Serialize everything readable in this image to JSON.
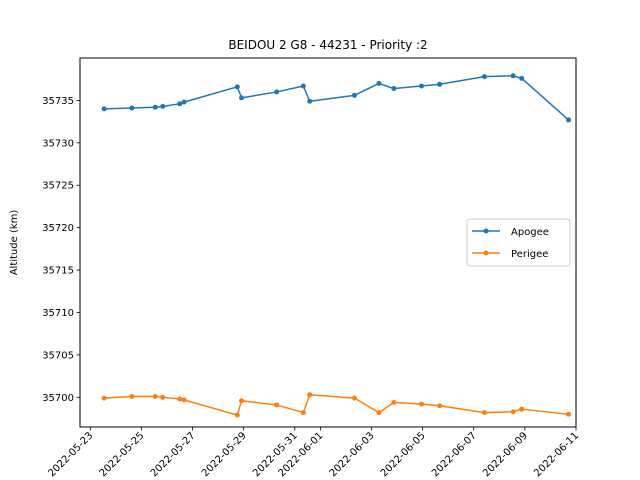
{
  "chart_data": {
    "type": "line",
    "title": "BEIDOU 2 G8 - 44231 - Priority :2",
    "xlabel": "",
    "ylabel": "Altitude (km)",
    "ylim": [
      35696.5,
      35740.0
    ],
    "xlim": [
      "2022-05-22 14:20",
      "2022-06-11 00:00"
    ],
    "yticks": [
      35700,
      35705,
      35710,
      35715,
      35720,
      35725,
      35730,
      35735
    ],
    "xticks": [
      "2022-05-23",
      "2022-05-25",
      "2022-05-27",
      "2022-05-29",
      "2022-05-31",
      "2022-06-01",
      "2022-06-03",
      "2022-06-05",
      "2022-06-07",
      "2022-06-09",
      "2022-06-11"
    ],
    "grid": false,
    "legend_position": "center-right",
    "series": [
      {
        "name": "Apogee",
        "color": "#1f77b4",
        "points": [
          {
            "x": "2022-05-23 13:00",
            "y": 35734.0
          },
          {
            "x": "2022-05-24 15:00",
            "y": 35734.1
          },
          {
            "x": "2022-05-25 13:00",
            "y": 35734.2
          },
          {
            "x": "2022-05-25 20:00",
            "y": 35734.3
          },
          {
            "x": "2022-05-26 12:00",
            "y": 35734.6
          },
          {
            "x": "2022-05-26 16:00",
            "y": 35734.8
          },
          {
            "x": "2022-05-28 18:00",
            "y": 35736.6
          },
          {
            "x": "2022-05-28 22:00",
            "y": 35735.3
          },
          {
            "x": "2022-05-30 07:00",
            "y": 35736.0
          },
          {
            "x": "2022-05-31 08:00",
            "y": 35736.7
          },
          {
            "x": "2022-05-31 14:00",
            "y": 35734.9
          },
          {
            "x": "2022-06-02 08:00",
            "y": 35735.6
          },
          {
            "x": "2022-06-03 07:00",
            "y": 35737.0
          },
          {
            "x": "2022-06-03 21:00",
            "y": 35736.4
          },
          {
            "x": "2022-06-04 23:00",
            "y": 35736.7
          },
          {
            "x": "2022-06-05 16:00",
            "y": 35736.9
          },
          {
            "x": "2022-06-07 10:00",
            "y": 35737.8
          },
          {
            "x": "2022-06-08 13:00",
            "y": 35737.9
          },
          {
            "x": "2022-06-08 21:00",
            "y": 35737.6
          },
          {
            "x": "2022-06-10 17:00",
            "y": 35732.7
          }
        ]
      },
      {
        "name": "Perigee",
        "color": "#ff7f0e",
        "points": [
          {
            "x": "2022-05-23 13:00",
            "y": 35699.9
          },
          {
            "x": "2022-05-24 15:00",
            "y": 35700.1
          },
          {
            "x": "2022-05-25 13:00",
            "y": 35700.1
          },
          {
            "x": "2022-05-25 20:00",
            "y": 35700.0
          },
          {
            "x": "2022-05-26 12:00",
            "y": 35699.8
          },
          {
            "x": "2022-05-26 16:00",
            "y": 35699.7
          },
          {
            "x": "2022-05-28 18:00",
            "y": 35697.9
          },
          {
            "x": "2022-05-28 22:00",
            "y": 35699.6
          },
          {
            "x": "2022-05-30 07:00",
            "y": 35699.1
          },
          {
            "x": "2022-05-31 08:00",
            "y": 35698.2
          },
          {
            "x": "2022-05-31 14:00",
            "y": 35700.3
          },
          {
            "x": "2022-06-02 08:00",
            "y": 35699.9
          },
          {
            "x": "2022-06-03 07:00",
            "y": 35698.2
          },
          {
            "x": "2022-06-03 21:00",
            "y": 35699.4
          },
          {
            "x": "2022-06-04 23:00",
            "y": 35699.2
          },
          {
            "x": "2022-06-05 16:00",
            "y": 35699.0
          },
          {
            "x": "2022-06-07 10:00",
            "y": 35698.2
          },
          {
            "x": "2022-06-08 13:00",
            "y": 35698.3
          },
          {
            "x": "2022-06-08 21:00",
            "y": 35698.6
          },
          {
            "x": "2022-06-10 17:00",
            "y": 35698.0
          }
        ]
      }
    ]
  }
}
